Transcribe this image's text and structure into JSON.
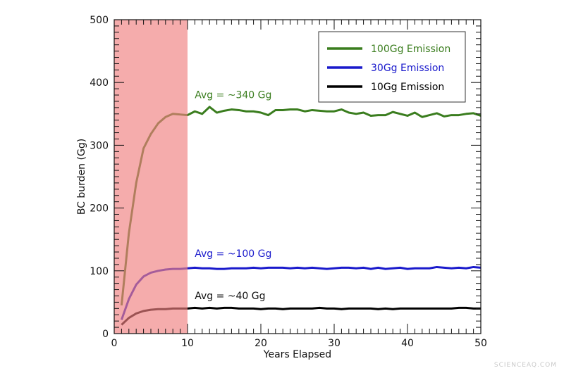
{
  "chart_data": {
    "type": "line",
    "title": "",
    "xlabel": "Years Elapsed",
    "ylabel": "BC burden (Gg)",
    "xlim": [
      0,
      50
    ],
    "ylim": [
      0,
      500
    ],
    "xticks": [
      "0",
      "10",
      "20",
      "30",
      "40",
      "50"
    ],
    "yticks": [
      "0",
      "100",
      "200",
      "300",
      "400",
      "500"
    ],
    "grid": false,
    "legend_position": "top-right",
    "shaded_region": {
      "x_start": 0,
      "x_end": 10,
      "color": "#f08080"
    },
    "x": [
      1,
      2,
      3,
      4,
      5,
      6,
      7,
      8,
      9,
      10,
      11,
      12,
      13,
      14,
      15,
      16,
      17,
      18,
      19,
      20,
      21,
      22,
      23,
      24,
      25,
      26,
      27,
      28,
      29,
      30,
      31,
      32,
      33,
      34,
      35,
      36,
      37,
      38,
      39,
      40,
      41,
      42,
      43,
      44,
      45,
      46,
      47,
      48,
      49,
      50
    ],
    "series": [
      {
        "name": "100Gg Emission",
        "color": "#3a7d1e",
        "values": [
          45,
          160,
          240,
          295,
          318,
          335,
          345,
          350,
          349,
          348,
          354,
          350,
          361,
          352,
          355,
          357,
          356,
          354,
          354,
          352,
          348,
          356,
          356,
          357,
          357,
          354,
          356,
          355,
          354,
          354,
          357,
          352,
          350,
          352,
          347,
          348,
          348,
          353,
          350,
          347,
          352,
          345,
          348,
          351,
          346,
          348,
          348,
          350,
          351,
          347
        ]
      },
      {
        "name": "30Gg Emission",
        "color": "#1a1acc",
        "values": [
          22,
          55,
          78,
          91,
          97,
          100,
          102,
          103,
          103,
          104,
          105,
          104,
          104,
          103,
          103,
          104,
          104,
          104,
          105,
          104,
          105,
          105,
          105,
          104,
          105,
          104,
          105,
          104,
          103,
          104,
          105,
          105,
          104,
          105,
          103,
          105,
          103,
          104,
          105,
          103,
          104,
          104,
          104,
          106,
          105,
          104,
          105,
          104,
          106,
          105
        ]
      },
      {
        "name": "10Gg Emission",
        "color": "#000000",
        "values": [
          14,
          25,
          32,
          36,
          38,
          39,
          39,
          40,
          40,
          40,
          41,
          40,
          41,
          40,
          41,
          41,
          40,
          40,
          40,
          39,
          40,
          40,
          39,
          40,
          40,
          40,
          40,
          41,
          40,
          40,
          39,
          40,
          40,
          40,
          40,
          39,
          40,
          39,
          40,
          40,
          40,
          40,
          40,
          40,
          40,
          40,
          41,
          41,
          40,
          40
        ]
      }
    ],
    "annotations": [
      {
        "text": "Avg = ~340 Gg",
        "x": 10.5,
        "y": 375,
        "color": "#3a7d1e"
      },
      {
        "text": "Avg =  ~100 Gg",
        "x": 10.5,
        "y": 122,
        "color": "#1a1acc"
      },
      {
        "text": "Avg = ~40 Gg",
        "x": 10.5,
        "y": 55,
        "color": "#111111"
      }
    ]
  },
  "watermark": "SCIENCEAQ.COM"
}
